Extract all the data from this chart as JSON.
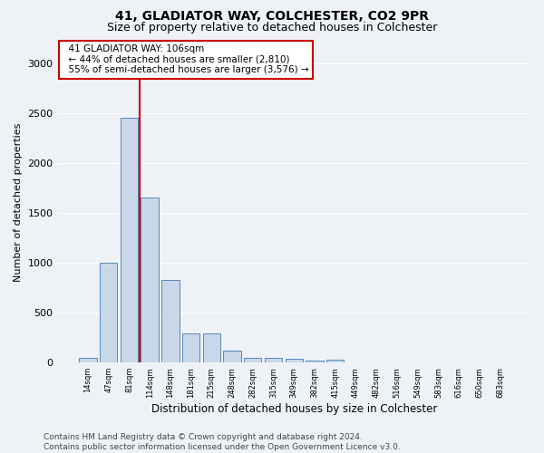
{
  "title": "41, GLADIATOR WAY, COLCHESTER, CO2 9PR",
  "subtitle": "Size of property relative to detached houses in Colchester",
  "xlabel": "Distribution of detached houses by size in Colchester",
  "ylabel": "Number of detached properties",
  "categories": [
    "14sqm",
    "47sqm",
    "81sqm",
    "114sqm",
    "148sqm",
    "181sqm",
    "215sqm",
    "248sqm",
    "282sqm",
    "315sqm",
    "349sqm",
    "382sqm",
    "415sqm",
    "449sqm",
    "482sqm",
    "516sqm",
    "549sqm",
    "583sqm",
    "616sqm",
    "650sqm",
    "683sqm"
  ],
  "values": [
    50,
    1000,
    2450,
    1650,
    830,
    290,
    290,
    120,
    50,
    50,
    35,
    20,
    30,
    0,
    0,
    0,
    0,
    0,
    0,
    0,
    0
  ],
  "bar_color": "#c8d8e8",
  "bar_edge_color": "#5588bb",
  "vline_color": "#cc0000",
  "annotation_text": "  41 GLADIATOR WAY: 106sqm\n  ← 44% of detached houses are smaller (2,810)\n  55% of semi-detached houses are larger (3,576) →",
  "annotation_box_color": "#ffffff",
  "annotation_box_edge_color": "#cc0000",
  "annotation_fontsize": 7.5,
  "ylim": [
    0,
    3200
  ],
  "yticks": [
    0,
    500,
    1000,
    1500,
    2000,
    2500,
    3000
  ],
  "background_color": "#eef2f7",
  "footer_line1": "Contains HM Land Registry data © Crown copyright and database right 2024.",
  "footer_line2": "Contains public sector information licensed under the Open Government Licence v3.0.",
  "title_fontsize": 10,
  "subtitle_fontsize": 9,
  "xlabel_fontsize": 8.5,
  "ylabel_fontsize": 8,
  "footer_fontsize": 6.5,
  "vline_xindex": 2.5
}
